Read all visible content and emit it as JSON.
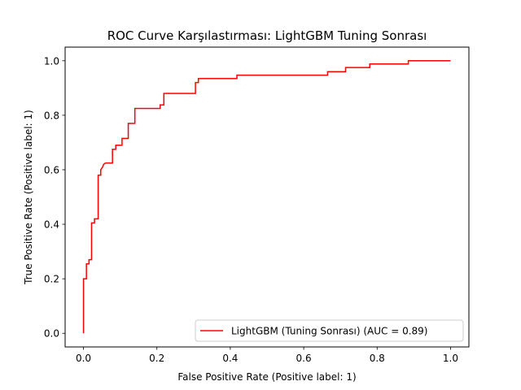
{
  "chart_data": {
    "type": "line",
    "title": "ROC Curve Karşılastırması: LightGBM Tuning Sonrası",
    "xlabel": "False Positive Rate (Positive label: 1)",
    "ylabel": "True Positive Rate (Positive label: 1)",
    "xlim": [
      -0.05,
      1.05
    ],
    "ylim": [
      -0.05,
      1.05
    ],
    "xticks": [
      0.0,
      0.2,
      0.4,
      0.6,
      0.8,
      1.0
    ],
    "xtick_labels": [
      "0.0",
      "0.2",
      "0.4",
      "0.6",
      "0.8",
      "1.0"
    ],
    "yticks": [
      0.0,
      0.2,
      0.4,
      0.6,
      0.8,
      1.0
    ],
    "ytick_labels": [
      "0.0",
      "0.2",
      "0.4",
      "0.6",
      "0.8",
      "1.0"
    ],
    "grid": false,
    "legend_position": "lower-right",
    "series": [
      {
        "name": "LightGBM (Tuning Sonrası) (AUC = 0.89)",
        "color": "#ff0000",
        "x": [
          0.0,
          0.0,
          0.008,
          0.008,
          0.015,
          0.015,
          0.022,
          0.022,
          0.03,
          0.03,
          0.04,
          0.04,
          0.047,
          0.047,
          0.052,
          0.055,
          0.06,
          0.079,
          0.079,
          0.088,
          0.088,
          0.105,
          0.105,
          0.122,
          0.122,
          0.14,
          0.14,
          0.209,
          0.209,
          0.219,
          0.219,
          0.305,
          0.305,
          0.313,
          0.313,
          0.418,
          0.418,
          0.665,
          0.665,
          0.714,
          0.714,
          0.78,
          0.78,
          0.885,
          0.885,
          1.0
        ],
        "y": [
          0.0,
          0.2,
          0.2,
          0.255,
          0.255,
          0.27,
          0.27,
          0.405,
          0.405,
          0.42,
          0.42,
          0.58,
          0.58,
          0.6,
          0.61,
          0.62,
          0.625,
          0.625,
          0.675,
          0.675,
          0.69,
          0.69,
          0.715,
          0.715,
          0.77,
          0.77,
          0.825,
          0.825,
          0.838,
          0.838,
          0.88,
          0.88,
          0.92,
          0.92,
          0.935,
          0.935,
          0.947,
          0.947,
          0.96,
          0.96,
          0.975,
          0.975,
          0.988,
          0.988,
          1.0,
          1.0
        ]
      }
    ]
  }
}
